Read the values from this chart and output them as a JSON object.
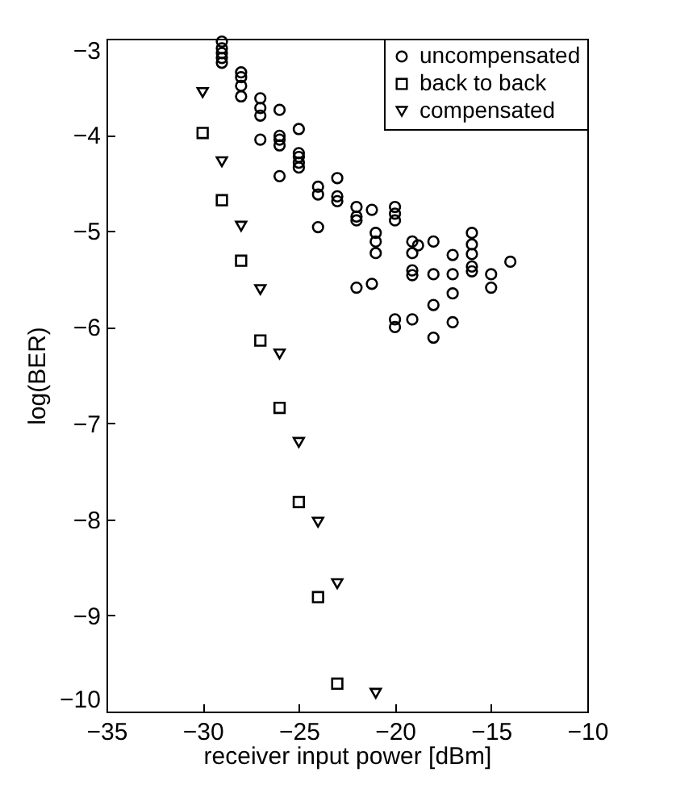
{
  "chart_data": {
    "type": "scatter",
    "xlabel": "receiver input power [dBm]",
    "ylabel": "log(BER)",
    "xlim": [
      -35,
      -10
    ],
    "xticks": [
      -35,
      -30,
      -25,
      -20,
      -15,
      -10
    ],
    "ylim": [
      -10,
      -3
    ],
    "yticks": [
      -10,
      -9,
      -8,
      -7,
      -6,
      -5,
      -4,
      -3
    ],
    "grid": false,
    "legend": "top right",
    "series": [
      {
        "name": "uncompensated",
        "color": "#000000",
        "marker": "circle",
        "x": [
          -29,
          -29,
          -29,
          -29,
          -29,
          -28,
          -28,
          -28,
          -28,
          -27,
          -27,
          -27,
          -27,
          -26,
          -26,
          -26,
          -26,
          -26,
          -25,
          -25,
          -25,
          -25,
          -25,
          -24,
          -24,
          -24,
          -23,
          -23,
          -23,
          -22,
          -22,
          -22,
          -22,
          -21.2,
          -21.2,
          -21,
          -21,
          -21,
          -20,
          -20,
          -20,
          -20,
          -20,
          -19.1,
          -19.1,
          -19.1,
          -19.1,
          -19.1,
          -18.8,
          -18,
          -18,
          -18,
          -18,
          -17,
          -17,
          -17,
          -17,
          -16,
          -16,
          -16,
          -16,
          -16,
          -15,
          -15,
          -14
        ],
        "values": [
          -3.03,
          -3.1,
          -3.15,
          -3.2,
          -3.25,
          -3.35,
          -3.4,
          -3.49,
          -3.6,
          -3.62,
          -3.72,
          -3.8,
          -4.05,
          -3.74,
          -4.01,
          -4.05,
          -4.11,
          -4.43,
          -3.94,
          -4.19,
          -4.23,
          -4.29,
          -4.34,
          -4.54,
          -4.62,
          -4.96,
          -4.45,
          -4.64,
          -4.69,
          -4.75,
          -4.85,
          -4.89,
          -5.59,
          -4.78,
          -5.55,
          -5.02,
          -5.11,
          -5.23,
          -4.75,
          -4.82,
          -4.89,
          -5.92,
          -6.0,
          -5.11,
          -5.23,
          -5.41,
          -5.46,
          -5.92,
          -5.15,
          -5.11,
          -5.45,
          -5.77,
          -6.11,
          -5.25,
          -5.45,
          -5.65,
          -5.95,
          -5.02,
          -5.14,
          -5.24,
          -5.37,
          -5.42,
          -5.45,
          -5.59,
          -5.32
        ]
      },
      {
        "name": "back to back",
        "color": "#000000",
        "marker": "square",
        "x": [
          -30,
          -29,
          -28,
          -27,
          -26,
          -25,
          -24,
          -23
        ],
        "values": [
          -3.98,
          -4.68,
          -5.31,
          -6.14,
          -6.84,
          -7.82,
          -8.81,
          -9.71
        ]
      },
      {
        "name": "compensated",
        "color": "#000000",
        "marker": "triangle",
        "x": [
          -30,
          -29,
          -28,
          -27,
          -26,
          -25,
          -24,
          -23,
          -21
        ],
        "values": [
          -3.56,
          -4.28,
          -4.95,
          -5.61,
          -6.28,
          -7.2,
          -8.03,
          -8.67,
          -9.81
        ]
      }
    ]
  }
}
